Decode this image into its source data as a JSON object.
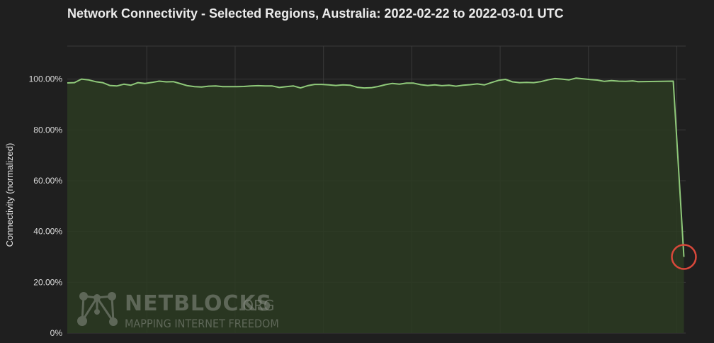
{
  "chart_data": {
    "type": "area",
    "title": "Network Connectivity - Selected Regions, Australia: 2022-02-22 to 2022-03-01 UTC",
    "ylabel": "Connectivity (normalized)",
    "xlabel": "",
    "ylim": [
      0,
      113
    ],
    "y_ticks": [
      "0%",
      "20.00%",
      "40.00%",
      "60.00%",
      "80.00%",
      "100.00%"
    ],
    "y_tick_values": [
      0,
      20,
      40,
      60,
      80,
      100
    ],
    "x_range": [
      0,
      7
    ],
    "x_grid": [
      0.9,
      1.9,
      2.9,
      3.9,
      4.9,
      5.9,
      6.9
    ],
    "grid": true,
    "series": [
      {
        "color": "#8fc97a",
        "points": [
          [
            0.0,
            98.5
          ],
          [
            0.08,
            98.6
          ],
          [
            0.16,
            100.0
          ],
          [
            0.24,
            99.7
          ],
          [
            0.32,
            99.0
          ],
          [
            0.4,
            98.6
          ],
          [
            0.48,
            97.5
          ],
          [
            0.56,
            97.3
          ],
          [
            0.64,
            98.0
          ],
          [
            0.72,
            97.6
          ],
          [
            0.8,
            98.6
          ],
          [
            0.88,
            98.3
          ],
          [
            0.96,
            98.7
          ],
          [
            1.04,
            99.2
          ],
          [
            1.12,
            98.9
          ],
          [
            1.2,
            99.0
          ],
          [
            1.28,
            98.2
          ],
          [
            1.36,
            97.4
          ],
          [
            1.44,
            97.0
          ],
          [
            1.52,
            96.9
          ],
          [
            1.6,
            97.2
          ],
          [
            1.68,
            97.3
          ],
          [
            1.76,
            97.0
          ],
          [
            1.84,
            97.0
          ],
          [
            1.92,
            97.0
          ],
          [
            2.0,
            97.1
          ],
          [
            2.08,
            97.3
          ],
          [
            2.16,
            97.4
          ],
          [
            2.24,
            97.3
          ],
          [
            2.32,
            97.3
          ],
          [
            2.4,
            96.7
          ],
          [
            2.48,
            97.0
          ],
          [
            2.56,
            97.3
          ],
          [
            2.64,
            96.5
          ],
          [
            2.72,
            97.4
          ],
          [
            2.8,
            97.9
          ],
          [
            2.88,
            97.9
          ],
          [
            2.96,
            97.7
          ],
          [
            3.04,
            97.5
          ],
          [
            3.12,
            97.7
          ],
          [
            3.2,
            97.6
          ],
          [
            3.28,
            96.8
          ],
          [
            3.36,
            96.5
          ],
          [
            3.44,
            96.6
          ],
          [
            3.52,
            97.1
          ],
          [
            3.6,
            97.8
          ],
          [
            3.68,
            98.3
          ],
          [
            3.76,
            98.0
          ],
          [
            3.84,
            98.4
          ],
          [
            3.92,
            98.4
          ],
          [
            4.0,
            97.8
          ],
          [
            4.08,
            97.5
          ],
          [
            4.16,
            97.7
          ],
          [
            4.24,
            97.4
          ],
          [
            4.32,
            97.6
          ],
          [
            4.4,
            97.2
          ],
          [
            4.48,
            97.6
          ],
          [
            4.56,
            97.8
          ],
          [
            4.64,
            98.1
          ],
          [
            4.72,
            97.7
          ],
          [
            4.8,
            98.6
          ],
          [
            4.88,
            99.5
          ],
          [
            4.96,
            99.9
          ],
          [
            5.04,
            98.9
          ],
          [
            5.12,
            98.6
          ],
          [
            5.2,
            98.7
          ],
          [
            5.28,
            98.6
          ],
          [
            5.36,
            99.0
          ],
          [
            5.44,
            99.7
          ],
          [
            5.52,
            100.2
          ],
          [
            5.6,
            100.0
          ],
          [
            5.68,
            99.7
          ],
          [
            5.76,
            100.4
          ],
          [
            5.84,
            100.1
          ],
          [
            5.92,
            99.8
          ],
          [
            6.0,
            99.6
          ],
          [
            6.08,
            99.1
          ],
          [
            6.16,
            99.4
          ],
          [
            6.24,
            99.2
          ],
          [
            6.32,
            99.1
          ],
          [
            6.4,
            99.3
          ],
          [
            6.46,
            99.0
          ],
          [
            6.86,
            99.2
          ],
          [
            6.98,
            30.0
          ]
        ]
      }
    ],
    "highlight_last_point": true,
    "highlight_color": "#d9483b"
  },
  "watermark": {
    "brand": "NETBLOCKS",
    "brand_suffix": ".ORG",
    "tagline": "MAPPING INTERNET FREEDOM"
  }
}
